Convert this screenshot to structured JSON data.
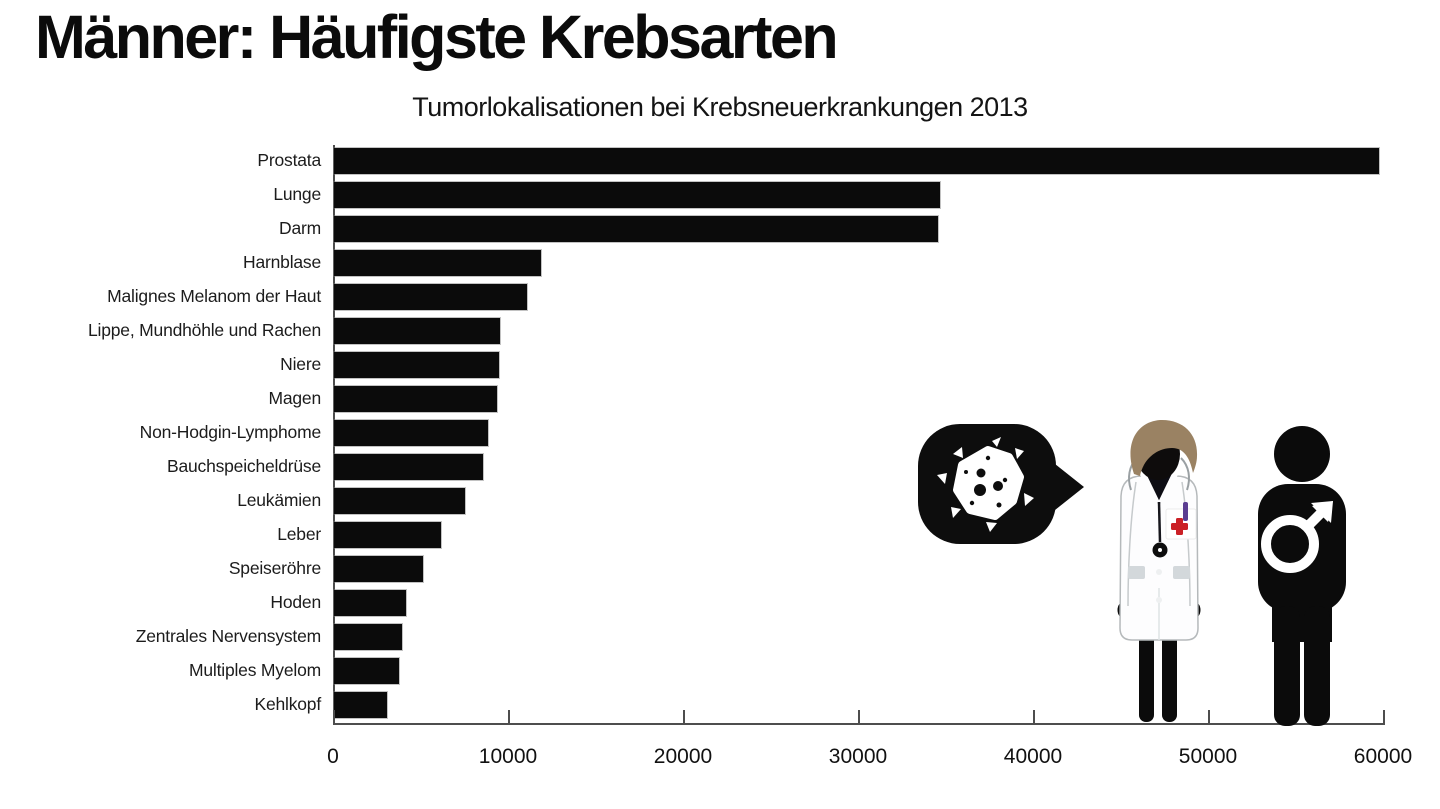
{
  "title": "Männer: Häufigste Krebsarten",
  "subtitle": "Tumorlokalisationen bei Krebsneuerkrankungen 2013",
  "chart_data": {
    "type": "bar",
    "orientation": "horizontal",
    "title": "Männer: Häufigste Krebsarten",
    "subtitle": "Tumorlokalisationen bei Krebsneuerkrankungen 2013",
    "categories": [
      "Prostata",
      "Lunge",
      "Darm",
      "Harnblase",
      "Malignes Melanom der Haut",
      "Lippe, Mundhöhle und Rachen",
      "Niere",
      "Magen",
      "Non-Hodgin-Lymphome",
      "Bauchspeicheldrüse",
      "Leukämien",
      "Leber",
      "Speiseröhre",
      "Hoden",
      "Zentrales Nervensystem",
      "Multiples Myelom",
      "Kehlkopf"
    ],
    "values": [
      59700,
      34600,
      34500,
      11800,
      11000,
      9500,
      9400,
      9300,
      8800,
      8500,
      7500,
      6100,
      5100,
      4100,
      3900,
      3700,
      3000
    ],
    "xlim": [
      0,
      60000
    ],
    "x_ticks": [
      0,
      10000,
      20000,
      30000,
      40000,
      50000,
      60000
    ],
    "xlabel": "",
    "ylabel": "",
    "grid": false,
    "legend": "none",
    "bar_color": "#0b0b0b",
    "axis_color": "#4d4d4d"
  },
  "illustration": {
    "speech_bubble_icon": "cancer-cell-icon",
    "figures": [
      "doctor-figure",
      "male-figure-with-mars-symbol"
    ],
    "colors": {
      "bubble": "#0d0d0d",
      "hair_brown": "#9a8263",
      "cross_red": "#cb2026",
      "pen_purple": "#5b3d91",
      "pocket_gray": "#d3d8db",
      "silhouette_black": "#0b0b0b"
    }
  }
}
